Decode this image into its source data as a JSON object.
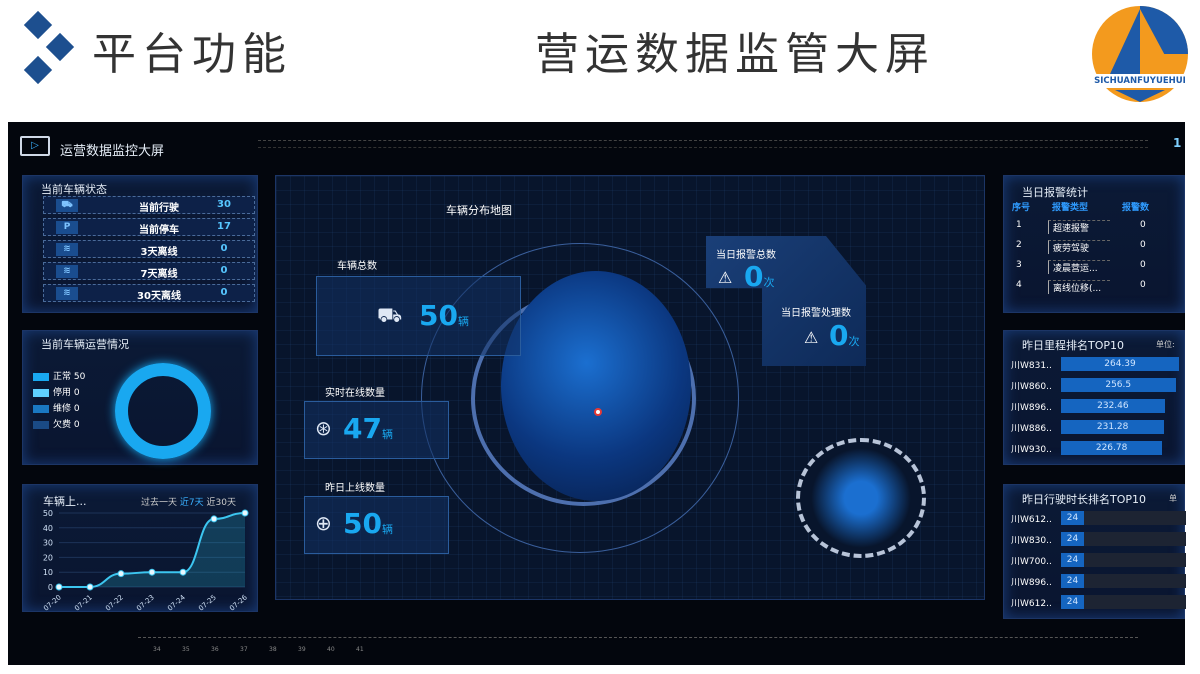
{
  "slide": {
    "title": "平台功能",
    "subtitle": "营运数据监管大屏",
    "logo_text": "SICHUANFUYUEHUI"
  },
  "dashboard": {
    "title": "运营数据监控大屏",
    "corner_number": "1",
    "vehicle_status": {
      "title": "当前车辆状态",
      "rows": [
        {
          "icon": "truck-icon",
          "label": "当前行驶",
          "value": "30"
        },
        {
          "icon": "parking-icon",
          "label": "当前停车",
          "value": "17"
        },
        {
          "icon": "signal-off-icon",
          "label": "3天离线",
          "value": "0"
        },
        {
          "icon": "signal-off-icon",
          "label": "7天离线",
          "value": "0"
        },
        {
          "icon": "signal-off-icon",
          "label": "30天离线",
          "value": "0"
        }
      ]
    },
    "operation": {
      "title": "当前车辆运营情况",
      "legend": [
        {
          "label": "正常 50",
          "color": "#19a8f0"
        },
        {
          "label": "停用 0",
          "color": "#5fd0ff"
        },
        {
          "label": "维修 0",
          "color": "#1a78c2"
        },
        {
          "label": "欠费 0",
          "color": "#1a4a85"
        }
      ]
    },
    "online_chart": {
      "title": "车辆上...",
      "filters": [
        "过去一天",
        "近7天",
        "近30天"
      ],
      "active_filter": "近7天"
    },
    "map": {
      "title": "车辆分布地图",
      "total": {
        "label": "车辆总数",
        "value": "50",
        "unit": "辆"
      },
      "online": {
        "label": "实时在线数量",
        "value": "47",
        "unit": "辆"
      },
      "yesterday": {
        "label": "昨日上线数量",
        "value": "50",
        "unit": "辆"
      },
      "alarm_total": {
        "label": "当日报警总数",
        "value": "0",
        "unit": "次"
      },
      "alarm_handled": {
        "label": "当日报警处理数",
        "value": "0",
        "unit": "次"
      }
    },
    "alarm_stats": {
      "title": "当日报警统计",
      "headers": [
        "序号",
        "报警类型",
        "报警数"
      ],
      "rows": [
        [
          "1",
          "超速报警",
          "0"
        ],
        [
          "2",
          "疲劳驾驶",
          "0"
        ],
        [
          "3",
          "凌晨营运...",
          "0"
        ],
        [
          "4",
          "离线位移(...",
          "0"
        ]
      ]
    },
    "mileage": {
      "title": "昨日里程排名TOP10",
      "unit_label": "单位:",
      "rows": [
        {
          "plate": "川W831..",
          "value": 264.39
        },
        {
          "plate": "川W860..",
          "value": 256.5
        },
        {
          "plate": "川W896..",
          "value": 232.46
        },
        {
          "plate": "川W886..",
          "value": 231.28
        },
        {
          "plate": "川W930..",
          "value": 226.78
        }
      ]
    },
    "duration": {
      "title": "昨日行驶时长排名TOP10",
      "unit_label": "单",
      "rows": [
        {
          "plate": "川W612..",
          "value": 24
        },
        {
          "plate": "川W830..",
          "value": 24
        },
        {
          "plate": "川W700..",
          "value": 24
        },
        {
          "plate": "川W896..",
          "value": 24
        },
        {
          "plate": "川W612..",
          "value": 24
        }
      ]
    },
    "timeline_ticks": [
      "34",
      "35",
      "36",
      "37",
      "38",
      "39",
      "40",
      "41"
    ]
  },
  "chart_data": {
    "type": "area",
    "title": "车辆上...",
    "x": [
      "07-20",
      "07-21",
      "07-22",
      "07-23",
      "07-24",
      "07-25",
      "07-26"
    ],
    "values": [
      0,
      0,
      9,
      10,
      10,
      46,
      50
    ],
    "ylim": [
      0,
      50
    ],
    "yticks": [
      0,
      10,
      20,
      30,
      40,
      50
    ],
    "grid": true
  }
}
